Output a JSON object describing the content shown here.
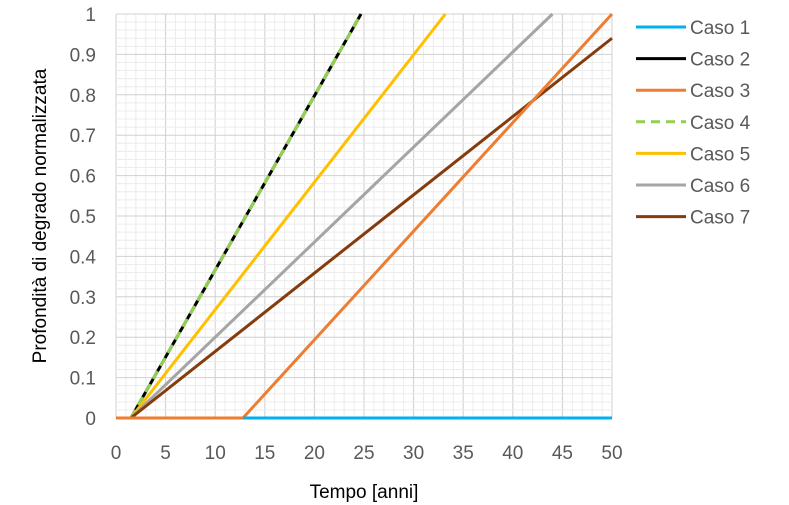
{
  "chart_data": {
    "type": "line",
    "xlabel": "Tempo [anni]",
    "ylabel": "Profondità di degrado normalizzata",
    "xlim": [
      0,
      50
    ],
    "ylim": [
      0,
      1
    ],
    "x_ticks": [
      0,
      5,
      10,
      15,
      20,
      25,
      30,
      35,
      40,
      45,
      50
    ],
    "y_ticks": [
      0,
      0.1,
      0.2,
      0.3,
      0.4,
      0.5,
      0.6,
      0.7,
      0.8,
      0.9,
      1
    ],
    "x_tick_labels": [
      "0",
      "5",
      "10",
      "15",
      "20",
      "25",
      "30",
      "35",
      "40",
      "45",
      "50"
    ],
    "y_tick_labels": [
      "0",
      "0.1",
      "0.2",
      "0.3",
      "0.4",
      "0.5",
      "0.6",
      "0.7",
      "0.8",
      "0.9",
      "1"
    ],
    "grid": true,
    "legend_position": "right",
    "series": [
      {
        "name": "Caso 1",
        "color": "#00B0F0",
        "dash": false,
        "points": [
          [
            12.8,
            0
          ],
          [
            50,
            0
          ]
        ]
      },
      {
        "name": "Caso 2",
        "color": "#000000",
        "dash": false,
        "points": [
          [
            1.5,
            0
          ],
          [
            24.7,
            1
          ]
        ]
      },
      {
        "name": "Caso 3",
        "color": "#ED7D31",
        "dash": false,
        "points": [
          [
            0,
            0
          ],
          [
            12.8,
            0
          ],
          [
            50,
            1
          ]
        ]
      },
      {
        "name": "Caso 4",
        "color": "#92D050",
        "dash": true,
        "points": [
          [
            1.5,
            0
          ],
          [
            24.7,
            1
          ]
        ]
      },
      {
        "name": "Caso 5",
        "color": "#FFC000",
        "dash": false,
        "points": [
          [
            1.5,
            0
          ],
          [
            33.2,
            1
          ]
        ]
      },
      {
        "name": "Caso 6",
        "color": "#A5A5A5",
        "dash": false,
        "points": [
          [
            1.5,
            0
          ],
          [
            44,
            1
          ]
        ]
      },
      {
        "name": "Caso 7",
        "color": "#843C0C",
        "dash": false,
        "points": [
          [
            1.5,
            0
          ],
          [
            50,
            0.94
          ]
        ]
      }
    ]
  }
}
